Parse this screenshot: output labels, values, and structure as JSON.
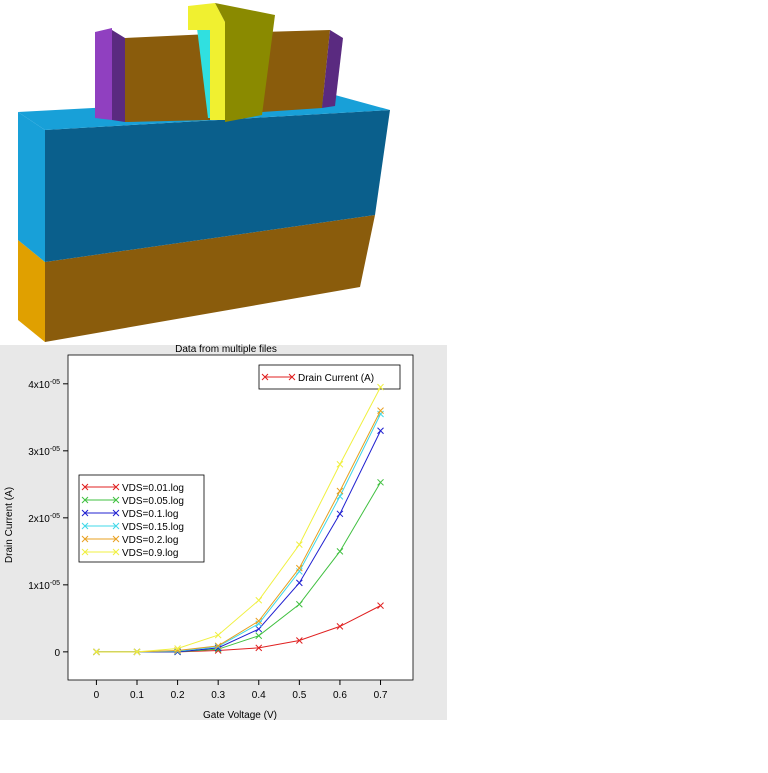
{
  "chart_data": {
    "type": "line",
    "title": "Data from multiple files",
    "x_label": "Gate Voltage (V)",
    "y_label": "Drain Current (A)",
    "top_legend": {
      "name": "Drain Current (A)",
      "color": "#e02020"
    },
    "x": [
      0,
      0.1,
      0.2,
      0.3,
      0.4,
      0.5,
      0.6,
      0.7
    ],
    "series": [
      {
        "name": "VDS=0.01.log",
        "color": "#e02020",
        "values": [
          0,
          0,
          0,
          2e-07,
          6e-07,
          1.7e-06,
          3.8e-06,
          6.9e-06
        ]
      },
      {
        "name": "VDS=0.05.log",
        "color": "#40c040",
        "values": [
          0,
          0,
          0,
          4e-07,
          2.4e-06,
          7.1e-06,
          1.5e-05,
          2.53e-05
        ]
      },
      {
        "name": "VDS=0.1.log",
        "color": "#2020d0",
        "values": [
          0,
          0,
          0,
          6e-07,
          3.4e-06,
          1.03e-05,
          2.06e-05,
          3.3e-05
        ]
      },
      {
        "name": "VDS=0.15.log",
        "color": "#40d8e8",
        "values": [
          0,
          0,
          1e-07,
          8e-07,
          4.2e-06,
          1.2e-05,
          2.32e-05,
          3.55e-05
        ]
      },
      {
        "name": "VDS=0.2.log",
        "color": "#e8a020",
        "values": [
          0,
          0,
          2e-07,
          9e-07,
          4.6e-06,
          1.25e-05,
          2.4e-05,
          3.6e-05
        ]
      },
      {
        "name": "VDS=0.9.log",
        "color": "#f0f040",
        "values": [
          0,
          0,
          5e-07,
          2.5e-06,
          7.7e-06,
          1.6e-05,
          2.8e-05,
          3.95e-05
        ]
      }
    ],
    "xlim": [
      -0.07,
      0.78
    ],
    "xticks": [
      0,
      0.1,
      0.2,
      0.3,
      0.4,
      0.5,
      0.6,
      0.7
    ],
    "ylim": [
      -4.2e-06,
      4.43e-05
    ],
    "yticks": [
      0,
      {
        "value": 1e-05,
        "label": "1x10-05"
      },
      {
        "value": 2e-05,
        "label": "2x10-05"
      },
      {
        "value": 3e-05,
        "label": "3x10-05"
      },
      {
        "value": 4e-05,
        "label": "4x10-05"
      }
    ]
  }
}
